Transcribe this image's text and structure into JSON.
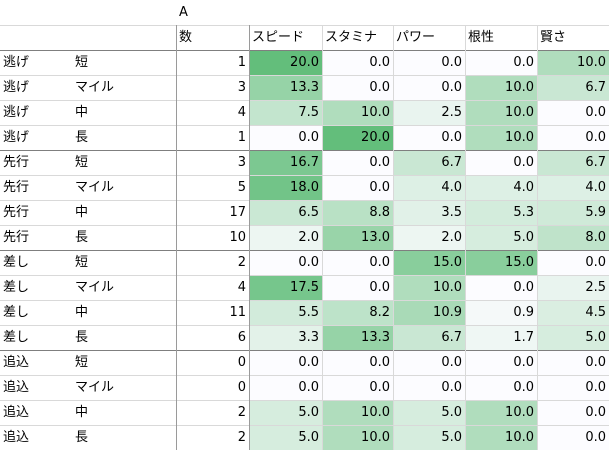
{
  "sheet": {
    "column_letter": "A",
    "headers": [
      "数",
      "スピード",
      "スタミナ",
      "パワー",
      "根性",
      "賢さ"
    ],
    "rows": [
      [
        "逃げ",
        "短",
        "1",
        "20.0",
        "0.0",
        "0.0",
        "0.0",
        "10.0"
      ],
      [
        "逃げ",
        "マイル",
        "3",
        "13.3",
        "0.0",
        "0.0",
        "10.0",
        "6.7"
      ],
      [
        "逃げ",
        "中",
        "4",
        "7.5",
        "10.0",
        "2.5",
        "10.0",
        "0.0"
      ],
      [
        "逃げ",
        "長",
        "1",
        "0.0",
        "20.0",
        "0.0",
        "10.0",
        "0.0"
      ],
      [
        "先行",
        "短",
        "3",
        "16.7",
        "0.0",
        "6.7",
        "0.0",
        "6.7"
      ],
      [
        "先行",
        "マイル",
        "5",
        "18.0",
        "0.0",
        "4.0",
        "4.0",
        "4.0"
      ],
      [
        "先行",
        "中",
        "17",
        "6.5",
        "8.8",
        "3.5",
        "5.3",
        "5.9"
      ],
      [
        "先行",
        "長",
        "10",
        "2.0",
        "13.0",
        "2.0",
        "5.0",
        "8.0"
      ],
      [
        "差し",
        "短",
        "2",
        "0.0",
        "0.0",
        "15.0",
        "15.0",
        "0.0"
      ],
      [
        "差し",
        "マイル",
        "4",
        "17.5",
        "0.0",
        "10.0",
        "0.0",
        "2.5"
      ],
      [
        "差し",
        "中",
        "11",
        "5.5",
        "8.2",
        "10.9",
        "0.9",
        "4.5"
      ],
      [
        "差し",
        "長",
        "6",
        "3.3",
        "13.3",
        "6.7",
        "1.7",
        "5.0"
      ],
      [
        "追込",
        "短",
        "0",
        "0.0",
        "0.0",
        "0.0",
        "0.0",
        "0.0"
      ],
      [
        "追込",
        "マイル",
        "0",
        "0.0",
        "0.0",
        "0.0",
        "0.0",
        "0.0"
      ],
      [
        "追込",
        "中",
        "2",
        "5.0",
        "10.0",
        "5.0",
        "10.0",
        "0.0"
      ],
      [
        "追込",
        "長",
        "2",
        "5.0",
        "10.0",
        "5.0",
        "10.0",
        "0.0"
      ]
    ],
    "scale": {
      "min": 0,
      "max": 20,
      "low_color": "#fcfcff",
      "high_color": "#63be7b"
    }
  }
}
